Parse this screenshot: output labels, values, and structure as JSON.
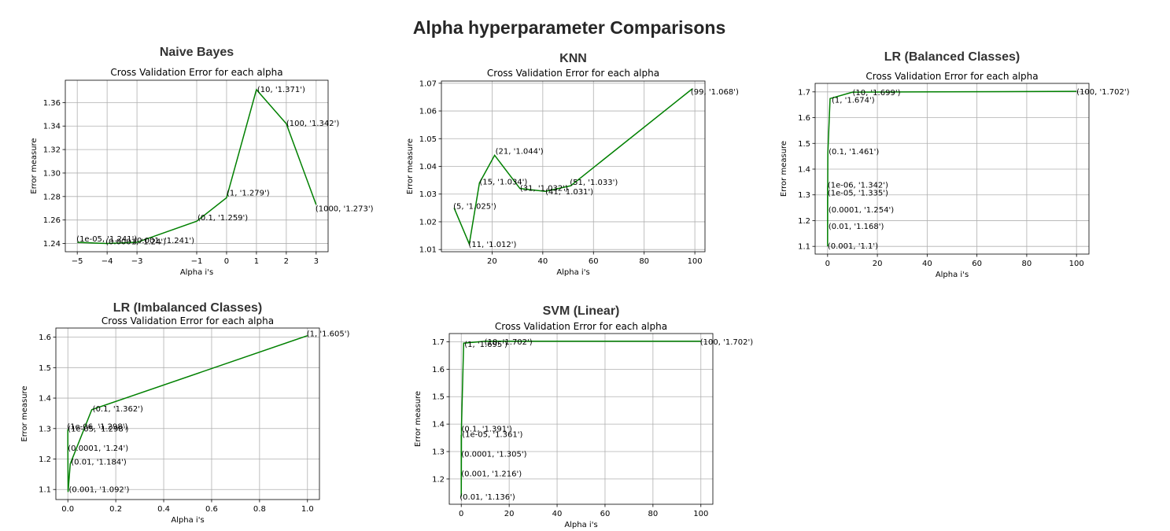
{
  "title": "Alpha hyperparameter Comparisons",
  "colors": {
    "line": "#008000",
    "grid": "#b0b0b0",
    "heading": "#333333"
  },
  "chart_data": [
    {
      "type": "line",
      "heading": "Naive Bayes",
      "title": "Cross Validation Error for each alpha",
      "xlabel": "Alpha i's",
      "ylabel": "Error measure",
      "grid": true,
      "xlim": [
        -5.4,
        3.4
      ],
      "ylim": [
        1.233,
        1.379
      ],
      "xticks": [
        -5,
        -4,
        -3,
        -1,
        0,
        1,
        2,
        3
      ],
      "xtick_labels": [
        "−5",
        "−4",
        "−3",
        "−1",
        "0",
        "1",
        "2",
        "3"
      ],
      "yticks": [
        1.24,
        1.26,
        1.28,
        1.3,
        1.32,
        1.34,
        1.36
      ],
      "ytick_labels": [
        "1.24",
        "1.26",
        "1.28",
        "1.30",
        "1.32",
        "1.34",
        "1.36"
      ],
      "x": [
        -5,
        -4,
        -3,
        -1,
        0,
        1,
        2,
        3
      ],
      "y": [
        1.241,
        1.24,
        1.241,
        1.259,
        1.279,
        1.371,
        1.342,
        1.273
      ],
      "point_labels": [
        "(1e-05, '1.241')",
        "(0.0001, '1.24')",
        "(0.001, '1.241')",
        "(0.1, '1.259')",
        "(1, '1.279')",
        "(10, '1.371')",
        "(100, '1.342')",
        "(1000, '1.273')"
      ]
    },
    {
      "type": "line",
      "heading": "KNN",
      "title": "Cross Validation Error for each alpha",
      "xlabel": "Alpha i's",
      "ylabel": "Error measure",
      "grid": true,
      "xlim": [
        0,
        104
      ],
      "ylim": [
        1.0092,
        1.0708
      ],
      "xticks": [
        20,
        40,
        60,
        80,
        100
      ],
      "xtick_labels": [
        "20",
        "40",
        "60",
        "80",
        "100"
      ],
      "yticks": [
        1.01,
        1.02,
        1.03,
        1.04,
        1.05,
        1.06,
        1.07
      ],
      "ytick_labels": [
        "1.01",
        "1.02",
        "1.03",
        "1.04",
        "1.05",
        "1.06",
        "1.07"
      ],
      "x": [
        5,
        11,
        15,
        21,
        31,
        41,
        51,
        99
      ],
      "y": [
        1.025,
        1.012,
        1.034,
        1.044,
        1.032,
        1.031,
        1.033,
        1.068
      ],
      "point_labels": [
        "(5, '1.025')",
        "(11, '1.012')",
        "(15, '1.034')",
        "(21, '1.044')",
        "(31, '1.032')",
        "(41, '1.031')",
        "(51, '1.033')",
        "(99, '1.068')"
      ]
    },
    {
      "type": "line",
      "heading": "LR (Balanced Classes)",
      "title": "Cross Validation Error for each alpha",
      "xlabel": "Alpha i's",
      "ylabel": "Error measure",
      "grid": true,
      "xlim": [
        -5,
        105
      ],
      "ylim": [
        1.07,
        1.733
      ],
      "xticks": [
        0,
        20,
        40,
        60,
        80,
        100
      ],
      "xtick_labels": [
        "0",
        "20",
        "40",
        "60",
        "80",
        "100"
      ],
      "yticks": [
        1.1,
        1.2,
        1.3,
        1.4,
        1.5,
        1.6,
        1.7
      ],
      "ytick_labels": [
        "1.1",
        "1.2",
        "1.3",
        "1.4",
        "1.5",
        "1.6",
        "1.7"
      ],
      "x": [
        1e-05,
        0.0001,
        0.001,
        0.01,
        0.1,
        1,
        10,
        100
      ],
      "y": [
        1.335,
        1.254,
        1.1,
        1.168,
        1.461,
        1.674,
        1.699,
        1.702
      ],
      "point_labels": [
        "(1e-05, '1.335')",
        "(0.0001, '1.254')",
        "(0.001, '1.1')",
        "(0.01, '1.168')",
        "(0.1, '1.461')",
        "(1, '1.674')",
        "(10, '1.699')",
        "(100, '1.702')"
      ],
      "overlap_labels": [
        "(1e-06, '1.342')"
      ]
    },
    {
      "type": "line",
      "heading": "LR (Imbalanced Classes)",
      "title": "Cross Validation Error for each alpha",
      "xlabel": "Alpha i's",
      "ylabel": "Error measure",
      "grid": true,
      "xlim": [
        -0.05,
        1.05
      ],
      "ylim": [
        1.067,
        1.63
      ],
      "xticks": [
        0.0,
        0.2,
        0.4,
        0.6,
        0.8,
        1.0
      ],
      "xtick_labels": [
        "0.0",
        "0.2",
        "0.4",
        "0.6",
        "0.8",
        "1.0"
      ],
      "yticks": [
        1.1,
        1.2,
        1.3,
        1.4,
        1.5,
        1.6
      ],
      "ytick_labels": [
        "1.1",
        "1.2",
        "1.3",
        "1.4",
        "1.5",
        "1.6"
      ],
      "x": [
        1e-06,
        1e-05,
        0.0001,
        0.001,
        0.01,
        0.1,
        1
      ],
      "y": [
        1.298,
        1.298,
        1.24,
        1.092,
        1.184,
        1.362,
        1.605
      ],
      "point_labels": [
        "(1e-06, '1.298')",
        "(1e-05, '1.298')",
        "(0.0001, '1.24')",
        "(0.001, '1.092')",
        "(0.01, '1.184')",
        "(0.1, '1.362')",
        "(1, '1.605')"
      ]
    },
    {
      "type": "line",
      "heading": "SVM (Linear)",
      "title": "Cross Validation Error for each alpha",
      "xlabel": "Alpha i's",
      "ylabel": "Error measure",
      "grid": true,
      "xlim": [
        -5,
        105
      ],
      "ylim": [
        1.108,
        1.73
      ],
      "xticks": [
        0,
        20,
        40,
        60,
        80,
        100
      ],
      "xtick_labels": [
        "0",
        "20",
        "40",
        "60",
        "80",
        "100"
      ],
      "yticks": [
        1.2,
        1.3,
        1.4,
        1.5,
        1.6,
        1.7
      ],
      "ytick_labels": [
        "1.2",
        "1.3",
        "1.4",
        "1.5",
        "1.6",
        "1.7"
      ],
      "x": [
        1e-05,
        0.0001,
        0.001,
        0.01,
        0.1,
        1,
        10,
        100
      ],
      "y": [
        1.361,
        1.305,
        1.216,
        1.136,
        1.391,
        1.695,
        1.702,
        1.702
      ],
      "point_labels": [
        "(1e-05, '1.361')",
        "(0.0001, '1.305')",
        "(0.001, '1.216')",
        "(0.01, '1.136')",
        "(0.1, '1.391')",
        "(1, '1.695')",
        "(10, '1.702')",
        "(100, '1.702')"
      ]
    }
  ]
}
